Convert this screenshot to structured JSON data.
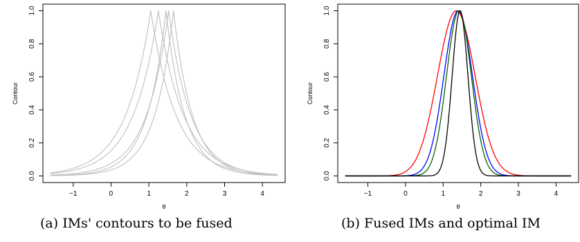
{
  "chart_data": [
    {
      "type": "line",
      "caption": "(a) IMs' contours to be fused",
      "xlabel": "θ",
      "ylabel": "Contour",
      "xlim": [
        -1.8,
        4.6
      ],
      "ylim": [
        -0.04,
        1.04
      ],
      "xticks": [
        -1,
        0,
        1,
        2,
        3,
        4
      ],
      "yticks": [
        0.0,
        0.2,
        0.4,
        0.6,
        0.8,
        1.0
      ],
      "ytick_labels": [
        "0.0",
        "0.2",
        "0.4",
        "0.6",
        "0.8",
        "1.0"
      ],
      "grid": false,
      "series": [
        {
          "color": "#bebebe",
          "mode": 1.05,
          "rate": 1.5,
          "x": [
            -1.6,
            -1.0,
            -0.5,
            0.0,
            0.5,
            1.05,
            1.5,
            2.0,
            2.5,
            3.0,
            3.5,
            4.0,
            4.4
          ],
          "y": [
            0.01,
            0.03,
            0.05,
            0.13,
            0.34,
            1.0,
            0.51,
            0.24,
            0.11,
            0.05,
            0.02,
            0.01,
            0.0
          ]
        },
        {
          "color": "#bebebe",
          "mode": 1.25,
          "rate": 1.5,
          "x": [
            -1.6,
            -1.0,
            -0.5,
            0.0,
            0.5,
            1.25,
            1.75,
            2.25,
            2.75,
            3.25,
            3.75,
            4.4
          ],
          "y": [
            0.0,
            0.02,
            0.04,
            0.1,
            0.24,
            1.0,
            0.47,
            0.22,
            0.11,
            0.05,
            0.02,
            0.0
          ]
        },
        {
          "color": "#bebebe",
          "mode": 1.45,
          "rate": 2.0,
          "x": [
            -1.6,
            -1.0,
            -0.5,
            0.0,
            0.5,
            1.0,
            1.45,
            2.0,
            2.5,
            3.0,
            3.5,
            4.4
          ],
          "y": [
            0.0,
            0.0,
            0.01,
            0.03,
            0.08,
            0.22,
            1.0,
            0.33,
            0.12,
            0.05,
            0.02,
            0.0
          ]
        },
        {
          "color": "#bebebe",
          "mode": 1.52,
          "rate": 1.7,
          "x": [
            -1.6,
            -1.0,
            -0.5,
            0.0,
            0.5,
            1.0,
            1.52,
            2.0,
            2.5,
            3.0,
            3.5,
            4.4
          ],
          "y": [
            0.0,
            0.01,
            0.02,
            0.05,
            0.13,
            0.34,
            1.0,
            0.42,
            0.17,
            0.07,
            0.03,
            0.0
          ]
        },
        {
          "color": "#bebebe",
          "mode": 1.65,
          "rate": 2.0,
          "x": [
            -1.6,
            -1.0,
            -0.5,
            0.0,
            0.5,
            1.0,
            1.65,
            2.0,
            2.5,
            3.0,
            3.5,
            4.4
          ],
          "y": [
            0.0,
            0.0,
            0.01,
            0.02,
            0.07,
            0.21,
            1.0,
            0.48,
            0.17,
            0.06,
            0.02,
            0.0
          ]
        }
      ]
    },
    {
      "type": "line",
      "caption": "(b) Fused IMs and optimal IM",
      "xlabel": "θ",
      "ylabel": "Contour",
      "xlim": [
        -1.8,
        4.6
      ],
      "ylim": [
        -0.04,
        1.04
      ],
      "xticks": [
        -1,
        0,
        1,
        2,
        3,
        4
      ],
      "yticks": [
        0.0,
        0.2,
        0.4,
        0.6,
        0.8,
        1.0
      ],
      "ytick_labels": [
        "0.0",
        "0.2",
        "0.4",
        "0.6",
        "0.8",
        "1.0"
      ],
      "grid": false,
      "series": [
        {
          "color": "#ff0000",
          "mode": 1.35,
          "sigma": 0.5,
          "x": [
            -1.6,
            0.0,
            0.3,
            0.6,
            0.9,
            1.35,
            1.7,
            2.0,
            2.3,
            2.6,
            3.0,
            3.2,
            4.4
          ],
          "y": [
            0.0,
            0.03,
            0.14,
            0.37,
            0.67,
            1.0,
            0.92,
            0.76,
            0.51,
            0.26,
            0.08,
            0.02,
            0.0
          ]
        },
        {
          "color": "#0000ff",
          "mode": 1.4,
          "sigma": 0.38,
          "x": [
            -1.6,
            0.2,
            0.5,
            0.8,
            1.1,
            1.4,
            1.7,
            2.0,
            2.3,
            2.6,
            4.4
          ],
          "y": [
            0.0,
            0.07,
            0.16,
            0.53,
            0.89,
            1.0,
            0.91,
            0.67,
            0.28,
            0.06,
            0.0
          ]
        },
        {
          "color": "#006400",
          "mode": 1.42,
          "sigma": 0.33,
          "x": [
            -1.6,
            0.3,
            0.6,
            0.9,
            1.1,
            1.42,
            1.7,
            2.0,
            2.3,
            2.5,
            4.4
          ],
          "y": [
            0.0,
            0.04,
            0.2,
            0.5,
            0.89,
            1.0,
            0.89,
            0.54,
            0.18,
            0.05,
            0.0
          ]
        },
        {
          "color": "#000000",
          "mode": 1.45,
          "sigma": 0.21,
          "x": [
            -1.6,
            0.6,
            0.9,
            1.2,
            1.45,
            1.7,
            2.0,
            2.3,
            4.4
          ],
          "y": [
            0.0,
            0.0,
            0.03,
            0.5,
            1.0,
            0.5,
            0.03,
            0.0,
            0.0
          ]
        }
      ]
    }
  ]
}
